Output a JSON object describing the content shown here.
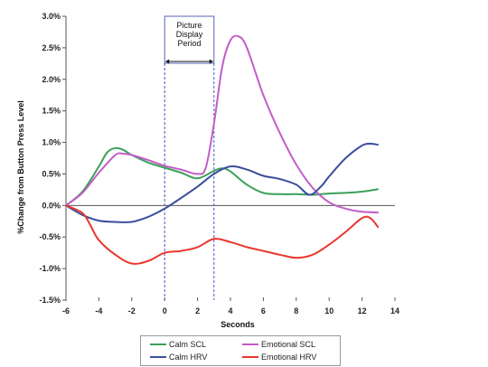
{
  "chart_data": {
    "type": "line",
    "title": "",
    "xlabel": "Seconds",
    "ylabel": "%Change from Button Press Level",
    "xlim": [
      -6,
      14
    ],
    "ylim": [
      -1.5,
      3.0
    ],
    "x_ticks": [
      "-6",
      "-4",
      "-2",
      "0",
      "2",
      "4",
      "6",
      "8",
      "10",
      "12",
      "14"
    ],
    "y_ticks": [
      "-1.5%",
      "-1.0%",
      "-0.5%",
      "0.0%",
      "0.5%",
      "1.0%",
      "1.5%",
      "2.0%",
      "2.5%",
      "3.0%"
    ],
    "grid": false,
    "legend_position": "bottom",
    "annotation": {
      "lines": [
        "Picture",
        "Display",
        "Period"
      ],
      "x_start": 0,
      "x_end": 3
    },
    "series": [
      {
        "name": "Calm SCL",
        "color": "#3aa05a",
        "x": [
          -6,
          -5,
          -4,
          -3.5,
          -3,
          -2.5,
          -2,
          -1,
          0,
          1,
          2,
          3,
          3.5,
          4,
          5,
          6,
          7,
          8,
          9,
          10,
          11,
          12,
          13
        ],
        "y": [
          0.0,
          0.22,
          0.62,
          0.84,
          0.91,
          0.88,
          0.8,
          0.68,
          0.6,
          0.52,
          0.43,
          0.55,
          0.59,
          0.54,
          0.33,
          0.2,
          0.18,
          0.18,
          0.17,
          0.19,
          0.2,
          0.22,
          0.26
        ]
      },
      {
        "name": "Emotional SCL",
        "color": "#c35cc6",
        "x": [
          -6,
          -5,
          -4,
          -3,
          -2.5,
          -2,
          -1,
          0,
          1,
          2,
          2.5,
          3,
          3.5,
          4,
          4.5,
          5,
          6,
          7,
          8,
          9,
          10,
          11,
          12,
          13
        ],
        "y": [
          0.0,
          0.2,
          0.52,
          0.8,
          0.82,
          0.8,
          0.72,
          0.63,
          0.57,
          0.5,
          0.6,
          1.3,
          2.2,
          2.62,
          2.68,
          2.5,
          1.75,
          1.15,
          0.65,
          0.28,
          0.05,
          -0.05,
          -0.1,
          -0.11
        ]
      },
      {
        "name": "Calm HRV",
        "color": "#3a4f9e",
        "x": [
          -6,
          -5,
          -4,
          -3,
          -2,
          -1,
          0,
          1,
          2,
          3,
          4,
          5,
          6,
          7,
          8,
          8.8,
          9.5,
          10,
          11,
          12,
          12.5,
          13
        ],
        "y": [
          0.0,
          -0.15,
          -0.24,
          -0.26,
          -0.26,
          -0.18,
          -0.05,
          0.12,
          0.3,
          0.5,
          0.62,
          0.57,
          0.47,
          0.42,
          0.33,
          0.17,
          0.3,
          0.46,
          0.75,
          0.95,
          0.98,
          0.96
        ]
      },
      {
        "name": "Emotional HRV",
        "color": "#e8372d",
        "x": [
          -6,
          -5,
          -4.5,
          -4,
          -3,
          -2,
          -1,
          0,
          1,
          2,
          3,
          4,
          5,
          6,
          7,
          8,
          9,
          10,
          11,
          12,
          12.5,
          13
        ],
        "y": [
          0.0,
          -0.12,
          -0.32,
          -0.55,
          -0.78,
          -0.92,
          -0.88,
          -0.75,
          -0.72,
          -0.66,
          -0.53,
          -0.58,
          -0.66,
          -0.72,
          -0.78,
          -0.83,
          -0.78,
          -0.62,
          -0.42,
          -0.2,
          -0.2,
          -0.35
        ]
      }
    ]
  }
}
